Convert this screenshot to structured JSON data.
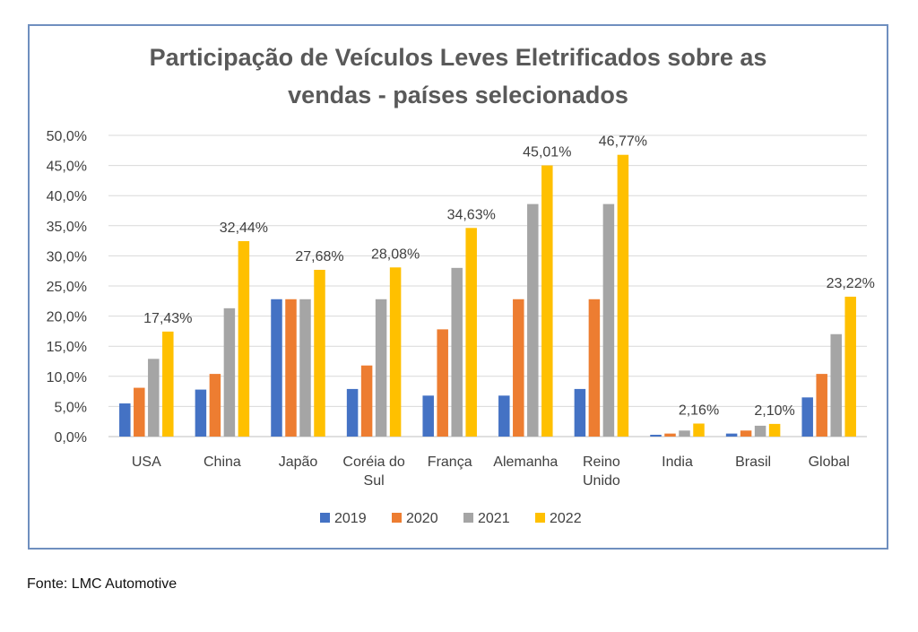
{
  "chart_data": {
    "type": "bar",
    "title": "Participação de Veículos Leves Eletrificados sobre as vendas - países selecionados",
    "title_lines": [
      "Participação de Veículos Leves Eletrificados sobre as",
      "vendas - países selecionados"
    ],
    "categories": [
      "USA",
      "China",
      "Japão",
      "Coréia do Sul",
      "França",
      "Alemanha",
      "Reino Unido",
      "India",
      "Brasil",
      "Global"
    ],
    "category_lines": [
      [
        "USA"
      ],
      [
        "China"
      ],
      [
        "Japão"
      ],
      [
        "Coréia do",
        "Sul"
      ],
      [
        "França"
      ],
      [
        "Alemanha"
      ],
      [
        "Reino",
        "Unido"
      ],
      [
        "India"
      ],
      [
        "Brasil"
      ],
      [
        "Global"
      ]
    ],
    "series": [
      {
        "name": "2019",
        "color": "#4472c4",
        "values": [
          5.5,
          7.8,
          22.8,
          7.9,
          6.8,
          6.8,
          7.9,
          0.3,
          0.5,
          6.5
        ]
      },
      {
        "name": "2020",
        "color": "#ed7d31",
        "values": [
          8.1,
          10.4,
          22.8,
          11.8,
          17.8,
          22.8,
          22.8,
          0.5,
          1.0,
          10.4
        ]
      },
      {
        "name": "2021",
        "color": "#a5a5a5",
        "values": [
          12.9,
          21.3,
          22.8,
          22.8,
          28.0,
          38.6,
          38.6,
          1.0,
          1.8,
          17.0
        ]
      },
      {
        "name": "2022",
        "color": "#ffc000",
        "values": [
          17.43,
          32.44,
          27.68,
          28.08,
          34.63,
          45.01,
          46.77,
          2.16,
          2.1,
          23.22
        ]
      }
    ],
    "data_labels": [
      "17,43%",
      "32,44%",
      "27,68%",
      "28,08%",
      "34,63%",
      "45,01%",
      "46,77%",
      "2,16%",
      "2,10%",
      "23,22%"
    ],
    "ylim": [
      0,
      50
    ],
    "y_ticks": [
      "0,0%",
      "5,0%",
      "10,0%",
      "15,0%",
      "20,0%",
      "25,0%",
      "30,0%",
      "35,0%",
      "40,0%",
      "45,0%",
      "50,0%"
    ],
    "grid": true,
    "legend": "bottom",
    "xlabel": "",
    "ylabel": ""
  },
  "source": "Fonte: LMC Automotive"
}
